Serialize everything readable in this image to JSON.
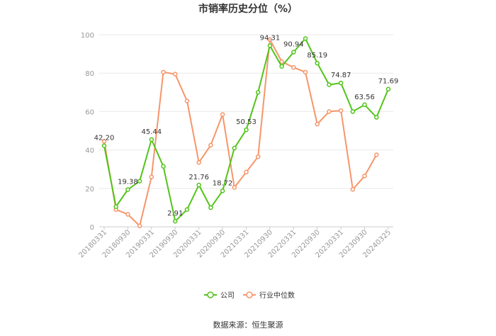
{
  "chart_data": {
    "type": "line",
    "title": "市销率历史分位（%）",
    "ylim": [
      0,
      100
    ],
    "yticks": [
      0,
      20,
      40,
      60,
      80,
      100
    ],
    "grid": true,
    "legend_position": "bottom",
    "x_tick_labels": [
      "20180331",
      "20180930",
      "20190331",
      "20190930",
      "20200331",
      "20200930",
      "20210331",
      "20210930",
      "20220331",
      "20220930",
      "20230331",
      "20230930",
      "20240325"
    ],
    "series": [
      {
        "name": "公司",
        "color": "#52c41a",
        "values": [
          42.2,
          10.5,
          19.38,
          23.8,
          45.44,
          31.5,
          2.91,
          9.0,
          21.76,
          10.0,
          18.72,
          41.0,
          50.53,
          70.0,
          94.31,
          83.5,
          90.94,
          98.0,
          85.19,
          74.0,
          74.87,
          60.0,
          63.56,
          57.0,
          71.69
        ],
        "labels": {
          "0": "42.20",
          "2": "19.38",
          "4": "45.44",
          "6": "2.91",
          "8": "21.76",
          "10": "18.72",
          "12": "50.53",
          "14": "94.31",
          "16": "90.94",
          "18": "85.19",
          "20": "74.87",
          "22": "63.56",
          "24": "71.69"
        }
      },
      {
        "name": "行业中位数",
        "color": "#f7956a",
        "values": [
          44.5,
          9.0,
          6.5,
          0.5,
          26.0,
          80.5,
          79.5,
          65.5,
          33.5,
          42.5,
          58.5,
          20.5,
          28.5,
          36.5,
          97.5,
          86.0,
          83.0,
          80.5,
          53.5,
          60.0,
          60.5,
          19.5,
          26.5,
          37.5,
          null
        ]
      }
    ]
  },
  "source": "数据来源：恒生聚源"
}
